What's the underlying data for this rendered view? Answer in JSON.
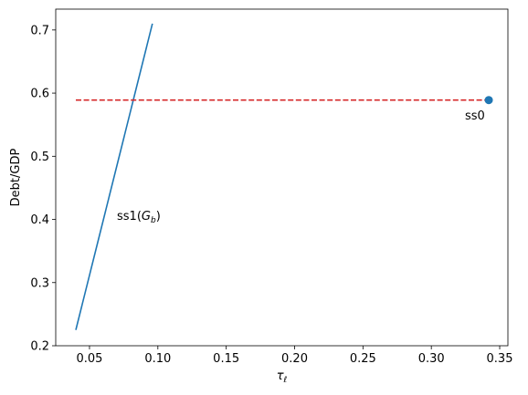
{
  "chart_data": {
    "type": "line",
    "xlabel": "τ",
    "xlabel_subscript": "ℓ",
    "ylabel": "Debt/GDP",
    "xlim": [
      0.0253,
      0.356
    ],
    "ylim": [
      0.2,
      0.733
    ],
    "xticks": [
      0.05,
      {
        "value": 0.1,
        "label": "0.10"
      },
      0.15,
      {
        "value": 0.2,
        "label": "0.20"
      },
      0.25,
      {
        "value": 0.3,
        "label": "0.30"
      },
      0.35
    ],
    "yticks": [
      0.2,
      0.3,
      0.4,
      0.5,
      0.6,
      0.7
    ],
    "series": [
      {
        "color": "#1f77b4",
        "style": "solid",
        "x": [
          0.04,
          0.096
        ],
        "values": [
          0.225,
          0.71
        ]
      },
      {
        "color": "#d62728",
        "style": "dashed",
        "x": [
          0.04,
          0.342
        ],
        "values": [
          0.589,
          0.589
        ]
      }
    ],
    "points": {
      "color": "#1f77b4",
      "x": [
        0.342
      ],
      "values": [
        0.589
      ]
    },
    "annotations": [
      {
        "parts": [
          "ss0"
        ]
      },
      {
        "parts": [
          "ss1(",
          "G",
          "b",
          ")"
        ]
      }
    ]
  }
}
